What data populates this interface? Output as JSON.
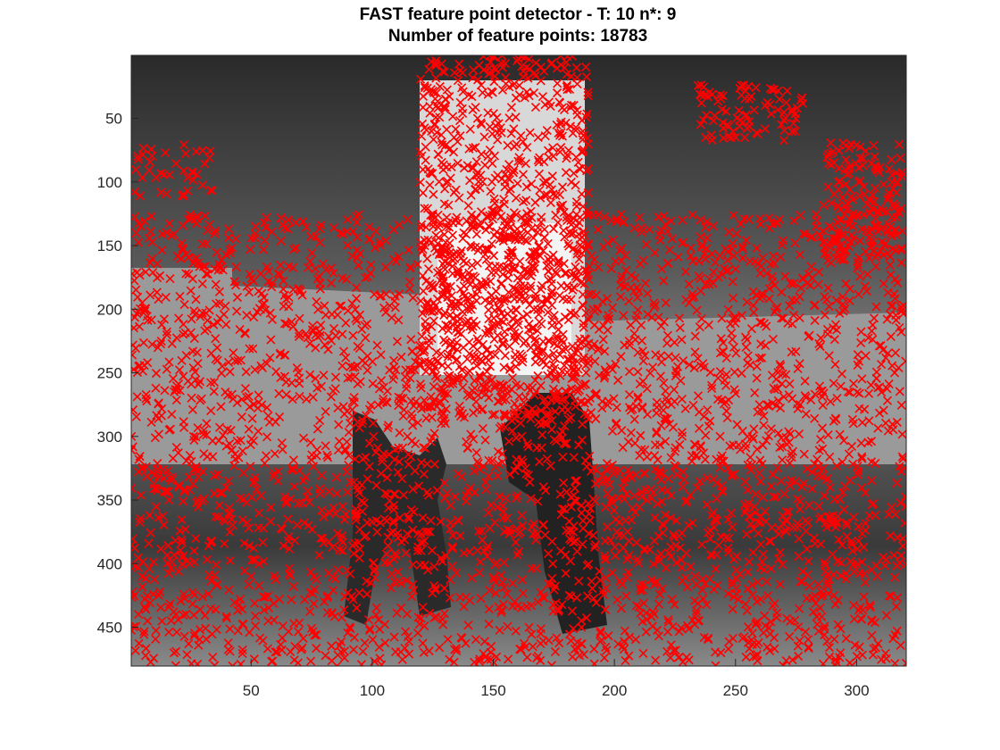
{
  "figure": {
    "title_line1": "FAST feature point detector - T: 10 n*: 9",
    "title_line2": "Number of feature points: 18783"
  },
  "axes": {
    "x_ticks": [
      "50",
      "100",
      "150",
      "200",
      "250",
      "300"
    ],
    "y_ticks": [
      "50",
      "100",
      "150",
      "200",
      "250",
      "300",
      "350",
      "400",
      "450"
    ],
    "x_range": [
      0.5,
      320.5
    ],
    "y_range": [
      0.5,
      480.5
    ],
    "y_direction": "reverse"
  },
  "markers": {
    "symbol": "x",
    "color": "#ff0000"
  },
  "colors": {
    "background": "#ffffff",
    "axis": "#262626",
    "marker": "#ff0000"
  }
}
